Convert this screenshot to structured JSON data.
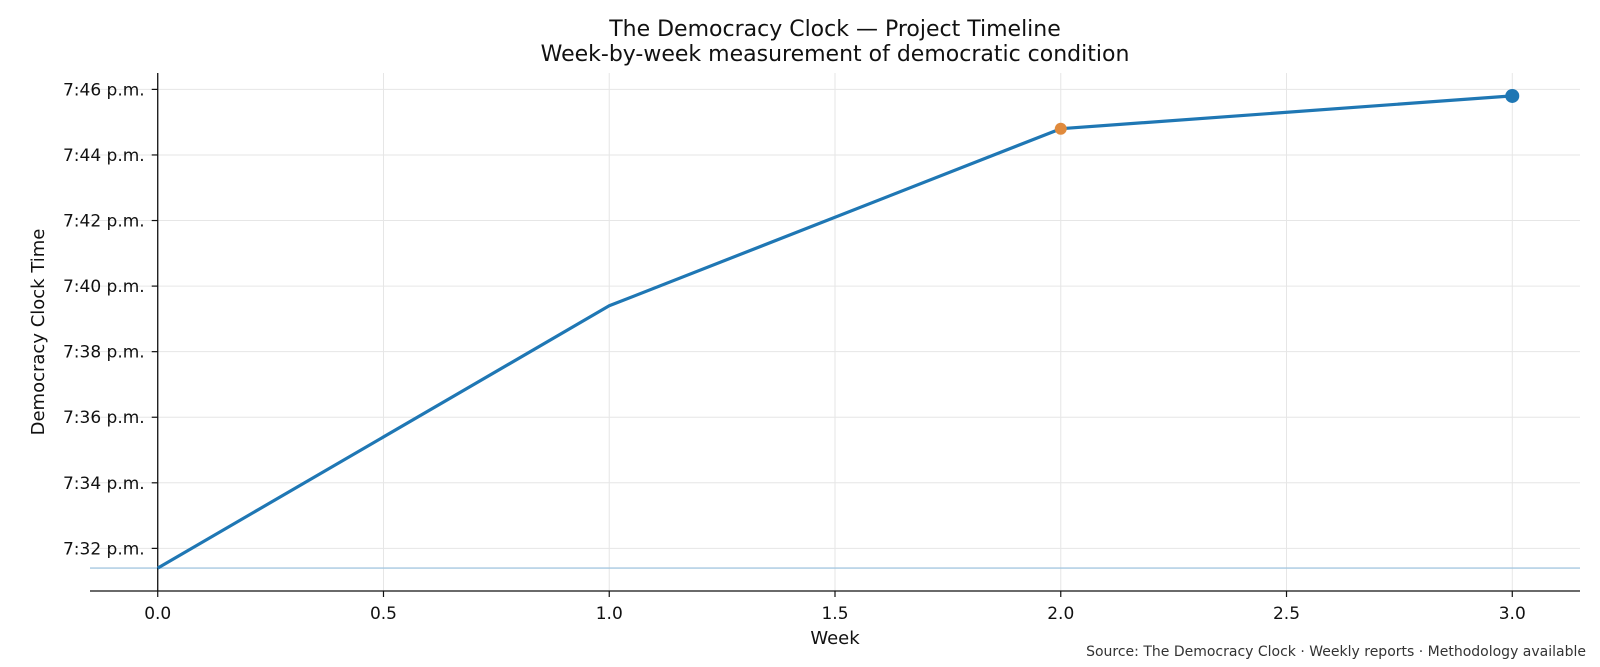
{
  "chart_data": {
    "type": "line",
    "title": "The Democracy Clock — Project Timeline",
    "subtitle": "Week-by-week measurement of democratic condition",
    "xlabel": "Week",
    "ylabel": "Democracy Clock Time",
    "x": [
      0,
      1,
      2,
      3
    ],
    "y_minutes": [
      31.4,
      39.4,
      44.8,
      45.8
    ],
    "y_unit": "minutes past 7 p.m.",
    "xlim": [
      -0.15,
      3.15
    ],
    "ylim": [
      30.7,
      46.5
    ],
    "x_ticks": [
      0.0,
      0.5,
      1.0,
      1.5,
      2.0,
      2.5,
      3.0
    ],
    "x_tick_labels": [
      "0.0",
      "0.5",
      "1.0",
      "1.5",
      "2.0",
      "2.5",
      "3.0"
    ],
    "y_ticks": [
      32,
      34,
      36,
      38,
      40,
      42,
      44,
      46
    ],
    "y_tick_labels": [
      "7:32 p.m.",
      "7:34 p.m.",
      "7:36 p.m.",
      "7:38 p.m.",
      "7:40 p.m.",
      "7:42 p.m.",
      "7:44 p.m.",
      "7:46 p.m."
    ],
    "baseline_minutes": 31.4,
    "highlights": [
      {
        "x": 2,
        "y_minutes": 44.8,
        "color": "#e08a3c"
      },
      {
        "x": 3,
        "y_minutes": 45.8,
        "color": "#1f77b4"
      }
    ],
    "grid": true,
    "line_color": "#1f77b4",
    "baseline_color": "#a6c8e0"
  },
  "footer": {
    "source": "Source: The Democracy Clock · Weekly reports · Methodology available"
  }
}
